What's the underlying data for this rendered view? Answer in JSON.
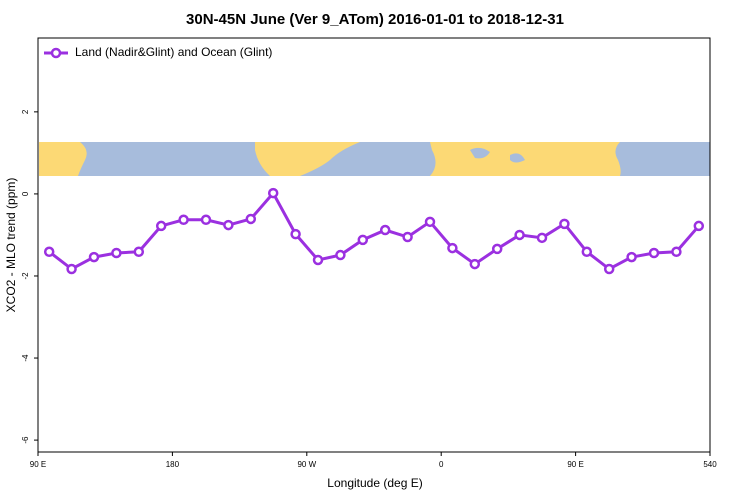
{
  "chart_data": {
    "type": "line",
    "title": "30N-45N June (Ver 9_ATom)   2016-01-01 to 2018-12-31",
    "x_label": "Longitude (deg E)",
    "y_label": "XCO2 - MLO trend (ppm)",
    "x": [
      97.5,
      112.5,
      127.5,
      142.5,
      157.5,
      172.5,
      187.5,
      202.5,
      217.5,
      232.5,
      247.5,
      262.5,
      277.5,
      292.5,
      307.5,
      322.5,
      337.5,
      352.5,
      367.5,
      382.5,
      397.5,
      412.5,
      427.5,
      442.5,
      457.5,
      472.5,
      487.5,
      502.5,
      517.5,
      532.5
    ],
    "series": [
      {
        "name": "Land (Nadir&Glint) and Ocean (Glint)",
        "color": "#9b30e0",
        "values": [
          -1.41,
          -1.83,
          -1.54,
          -1.44,
          -1.41,
          -0.78,
          -0.63,
          -0.63,
          -0.76,
          -0.61,
          0.02,
          -0.98,
          -1.61,
          -1.49,
          -1.12,
          -0.88,
          -1.05,
          -0.68,
          -1.32,
          -1.71,
          -1.34,
          -1.0,
          -1.07,
          -0.73,
          -1.41,
          -1.83,
          -1.54,
          -1.44,
          -1.41,
          -0.78
        ]
      }
    ],
    "xlim": [
      90,
      540
    ],
    "ylim": [
      -6.29,
      3.8
    ],
    "xticks": [
      {
        "value": 90,
        "label": "90 E"
      },
      180,
      {
        "value": 270,
        "label": "90 W"
      },
      {
        "value": 360,
        "label": "0"
      },
      {
        "value": 450,
        "label": "90 E"
      },
      540
    ],
    "yticks": [
      -6,
      -4,
      -2,
      0,
      2
    ],
    "legend": "top-left"
  }
}
